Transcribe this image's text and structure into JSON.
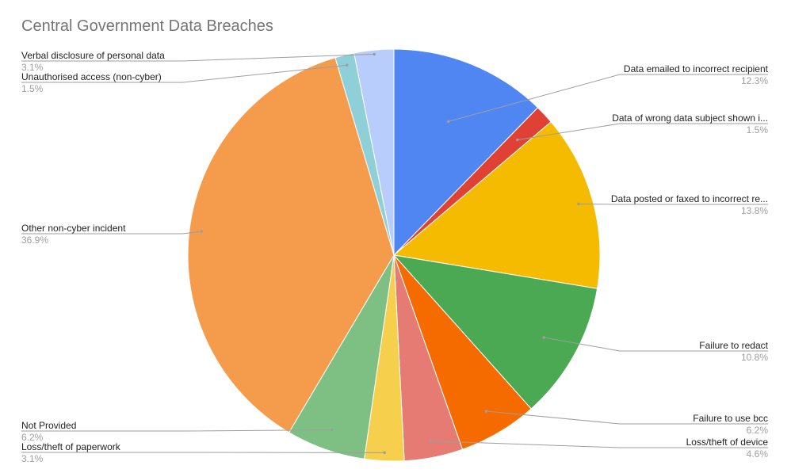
{
  "chart_data": {
    "type": "pie",
    "title": "Central Government Data Breaches",
    "colors": {
      "blue": "#4f86f2",
      "red": "#df4134",
      "yellow": "#f4bb00",
      "green": "#4ba853",
      "orange": "#f56b00",
      "salmon": "#e57b72",
      "gold": "#f6cf4d",
      "lightgreen": "#7ec084",
      "lightorange": "#f59c4c",
      "teal": "#8fd0d8",
      "periwinkle": "#b8cdfc"
    },
    "slices": [
      {
        "label": "Data emailed to incorrect recipient",
        "display_label": "Data emailed to incorrect recipient",
        "value": 12.3,
        "pct": "12.3%",
        "color": "#4f86f2"
      },
      {
        "label": "Data of wrong data subject shown in client portal",
        "display_label": "Data of wrong data subject shown i...",
        "value": 1.5,
        "pct": "1.5%",
        "color": "#df4134"
      },
      {
        "label": "Data posted or faxed to incorrect recipient",
        "display_label": "Data posted or faxed to incorrect re...",
        "value": 13.8,
        "pct": "13.8%",
        "color": "#f4bb00"
      },
      {
        "label": "Failure to redact",
        "display_label": "Failure to redact",
        "value": 10.8,
        "pct": "10.8%",
        "color": "#4ba853"
      },
      {
        "label": "Failure to use bcc",
        "display_label": "Failure to use bcc",
        "value": 6.2,
        "pct": "6.2%",
        "color": "#f56b00"
      },
      {
        "label": "Loss/theft of device",
        "display_label": "Loss/theft of device",
        "value": 4.6,
        "pct": "4.6%",
        "color": "#e57b72"
      },
      {
        "label": "Loss/theft of paperwork",
        "display_label": "Loss/theft of paperwork",
        "value": 3.1,
        "pct": "3.1%",
        "color": "#f6cf4d"
      },
      {
        "label": "Not Provided",
        "display_label": "Not Provided",
        "value": 6.2,
        "pct": "6.2%",
        "color": "#7ec084"
      },
      {
        "label": "Other non-cyber incident",
        "display_label": "Other non-cyber incident",
        "value": 36.9,
        "pct": "36.9%",
        "color": "#f59c4c"
      },
      {
        "label": "Unauthorised access (non-cyber)",
        "display_label": "Unauthorised access (non-cyber)",
        "value": 1.5,
        "pct": "1.5%",
        "color": "#8fd0d8"
      },
      {
        "label": "Verbal disclosure of personal data",
        "display_label": "Verbal disclosure of personal data",
        "value": 3.1,
        "pct": "3.1%",
        "color": "#b8cdfc"
      }
    ],
    "legend": "labels with leader lines"
  }
}
